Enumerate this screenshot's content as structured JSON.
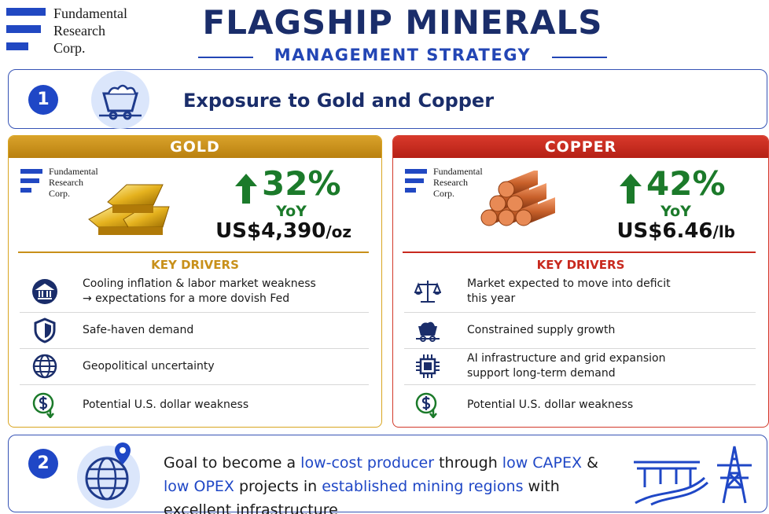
{
  "header": {
    "logo": [
      "Fundamental",
      "Research",
      "Corp."
    ],
    "title": "FLAGSHIP MINERALS",
    "subtitle": "MANAGEMENT STRATEGY"
  },
  "section1": {
    "number": "1",
    "heading": "Exposure to Gold and Copper"
  },
  "panels": [
    {
      "title": "GOLD",
      "logo": [
        "Fundamental",
        "Research",
        "Corp."
      ],
      "change": "32%",
      "change_label": "YoY",
      "price": "US$4,390",
      "unit": "/oz",
      "drivers_title": "KEY DRIVERS",
      "drivers": [
        "Cooling inflation & labor market weakness → expectations for a more dovish Fed",
        "Safe-haven demand",
        "Geopolitical uncertainty",
        "Potential U.S. dollar weakness"
      ]
    },
    {
      "title": "COPPER",
      "logo": [
        "Fundamental",
        "Research",
        "Corp."
      ],
      "change": "42%",
      "change_label": "YoY",
      "price": "US$6.46",
      "unit": "/lb",
      "drivers_title": "KEY DRIVERS",
      "drivers": [
        "Market expected to move into deficit this year",
        "Constrained supply growth",
        "AI infrastructure and grid expansion support long-term demand",
        "Potential U.S. dollar weakness"
      ]
    }
  ],
  "section2": {
    "number": "2",
    "segments": [
      {
        "text": "Goal to become a ",
        "highlight": false
      },
      {
        "text": "low-cost producer",
        "highlight": true
      },
      {
        "text": " through ",
        "highlight": false
      },
      {
        "text": "low CAPEX",
        "highlight": true
      },
      {
        "text": " & ",
        "highlight": false
      },
      {
        "text": "low OPEX",
        "highlight": true
      },
      {
        "text": " projects in ",
        "highlight": false
      },
      {
        "text": "established mining regions",
        "highlight": true
      },
      {
        "text": " with excellent infrastructure",
        "highlight": false
      }
    ]
  }
}
